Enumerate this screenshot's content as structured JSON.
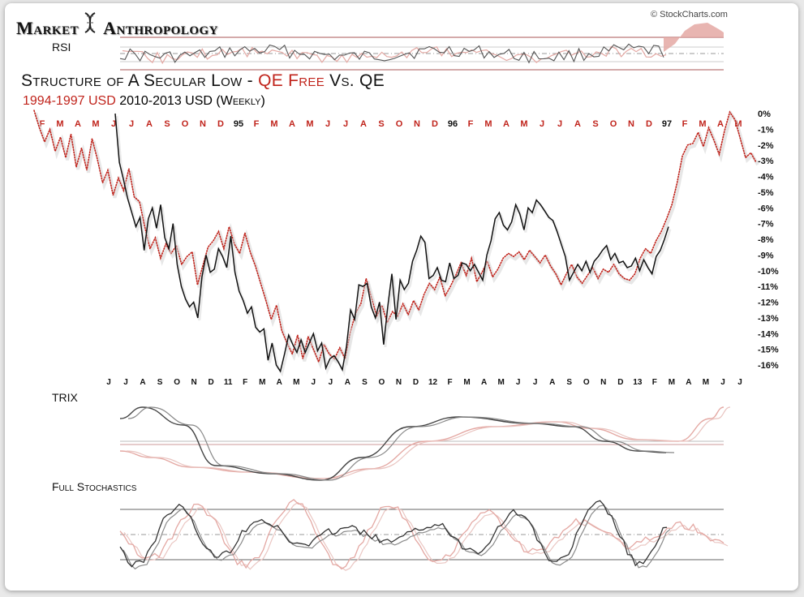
{
  "header": {
    "logo_left": "Market",
    "logo_right": "Anthropology",
    "copyright": "© StockCharts.com",
    "title_part1": "Structure of A Secular Low - ",
    "title_qe_free": "QE Free",
    "title_part2": " Vs. QE",
    "subtitle_red": "1994-1997 USD",
    "subtitle_black": " 2010-2013 USD (Weekly)"
  },
  "panels": {
    "rsi_label": "RSI",
    "trix_label": "TRIX",
    "stoch_label": "Full Stochastics"
  },
  "colors": {
    "red": "#c0231b",
    "pink": "#e4a8a3",
    "black": "#111111",
    "grey": "#777777"
  },
  "chart_data": {
    "type": "line",
    "title": "Structure of A Secular Low - QE Free Vs. QE",
    "subtitle": "1994-1997 USD 2010-2013 USD (Weekly)",
    "y_ticks": [
      "0%",
      "-1%",
      "-2%",
      "-3%",
      "-4%",
      "-5%",
      "-6%",
      "-7%",
      "-8%",
      "-9%",
      "-10%",
      "-11%",
      "-12%",
      "-13%",
      "-14%",
      "-15%",
      "-16%"
    ],
    "ylim": [
      -16,
      0
    ],
    "top_axis_labels": [
      "F",
      "M",
      "A",
      "M",
      "J",
      "J",
      "A",
      "S",
      "O",
      "N",
      "D",
      "95",
      "F",
      "M",
      "A",
      "M",
      "J",
      "J",
      "A",
      "S",
      "O",
      "N",
      "D",
      "96",
      "F",
      "M",
      "A",
      "M",
      "J",
      "J",
      "A",
      "S",
      "O",
      "N",
      "D",
      "97",
      "F",
      "M",
      "A",
      "M"
    ],
    "top_axis_dark": [
      "95",
      "96",
      "97"
    ],
    "bottom_axis_labels": [
      "J",
      "J",
      "A",
      "S",
      "O",
      "N",
      "D",
      "11",
      "F",
      "M",
      "A",
      "M",
      "J",
      "J",
      "A",
      "S",
      "O",
      "N",
      "D",
      "12",
      "F",
      "M",
      "A",
      "M",
      "J",
      "J",
      "A",
      "S",
      "O",
      "N",
      "D",
      "13",
      "F",
      "M",
      "A",
      "M",
      "J",
      "J"
    ],
    "series": [
      {
        "name": "1994-1997 USD",
        "style": "dotted",
        "x_start": 0,
        "x_end": 1,
        "values": [
          0.2,
          -0.9,
          -1.8,
          -1.0,
          -2.4,
          -1.5,
          -2.8,
          -1.3,
          -3.4,
          -2.2,
          -3.6,
          -1.6,
          -2.9,
          -4.4,
          -3.6,
          -5.2,
          -4.1,
          -4.9,
          -3.5,
          -5.3,
          -5.6,
          -7.2,
          -8.6,
          -7.9,
          -9.2,
          -8.3,
          -8.9,
          -8.4,
          -9.6,
          -9.1,
          -8.8,
          -10.9,
          -9.7,
          -8.5,
          -8.1,
          -7.5,
          -8.6,
          -7.2,
          -8.3,
          -8.9,
          -7.6,
          -8.8,
          -9.7,
          -10.8,
          -11.9,
          -13.1,
          -12.2,
          -13.8,
          -14.6,
          -15.3,
          -14.1,
          -15.6,
          -14.2,
          -15.0,
          -15.8,
          -14.7,
          -15.3,
          -15.6,
          -14.9,
          -15.6,
          -13.9,
          -12.7,
          -12.1,
          -10.5,
          -11.7,
          -12.9,
          -12.2,
          -13.3,
          -12.6,
          -12.9,
          -12.1,
          -12.8,
          -11.9,
          -12.5,
          -11.5,
          -10.8,
          -11.2,
          -10.4,
          -11.6,
          -11.0,
          -10.3,
          -9.5,
          -10.3,
          -9.2,
          -10.7,
          -10.1,
          -9.4,
          -10.4,
          -9.9,
          -9.2,
          -8.9,
          -9.1,
          -8.8,
          -9.3,
          -8.7,
          -9.1,
          -9.5,
          -9.0,
          -9.7,
          -10.2,
          -10.9,
          -10.2,
          -9.6,
          -10.4,
          -10.8,
          -10.3,
          -9.8,
          -10.5,
          -9.9,
          -10.1,
          -9.6,
          -10.2,
          -10.5,
          -10.6,
          -10.2,
          -9.2,
          -8.6,
          -8.9,
          -8.1,
          -7.5,
          -6.7,
          -5.8,
          -4.4,
          -2.7,
          -2.0,
          -1.9,
          -1.2,
          -2.1,
          -0.9,
          -1.7,
          -2.6,
          -1.1,
          0.1,
          -0.4,
          -1.6,
          -2.8,
          -2.5,
          -3.1
        ]
      },
      {
        "name": "2010-2013 USD",
        "style": "solid",
        "x_start": 0.1124,
        "x_end": 0.8787,
        "values": [
          0.0,
          -3.1,
          -4.2,
          -5.4,
          -6.3,
          -7.2,
          -6.6,
          -8.7,
          -6.7,
          -6.0,
          -7.3,
          -5.8,
          -7.9,
          -8.6,
          -7.0,
          -9.6,
          -11.0,
          -11.8,
          -12.3,
          -12.0,
          -13.0,
          -10.4,
          -9.0,
          -10.1,
          -9.9,
          -8.6,
          -9.1,
          -9.8,
          -7.8,
          -10.1,
          -11.3,
          -11.9,
          -12.7,
          -12.3,
          -13.6,
          -13.9,
          -13.7,
          -15.7,
          -14.6,
          -16.0,
          -16.4,
          -15.3,
          -14.1,
          -14.7,
          -15.2,
          -14.4,
          -15.2,
          -14.6,
          -14.0,
          -15.1,
          -14.6,
          -16.2,
          -15.6,
          -15.4,
          -15.8,
          -16.3,
          -14.8,
          -12.5,
          -13.1,
          -10.9,
          -11.0,
          -10.8,
          -12.3,
          -13.0,
          -12.0,
          -14.7,
          -12.3,
          -10.2,
          -13.1,
          -10.6,
          -11.2,
          -10.8,
          -9.4,
          -8.7,
          -7.8,
          -8.2,
          -10.5,
          -10.3,
          -9.8,
          -10.6,
          -10.7,
          -9.5,
          -10.5,
          -10.3,
          -9.5,
          -9.6,
          -10.0,
          -9.6,
          -10.1,
          -10.6,
          -9.0,
          -8.1,
          -6.7,
          -6.3,
          -7.1,
          -7.4,
          -6.9,
          -5.8,
          -6.4,
          -7.4,
          -6.0,
          -6.3,
          -5.5,
          -5.8,
          -6.2,
          -6.6,
          -6.8,
          -7.5,
          -8.3,
          -9.1,
          -10.6,
          -10.1,
          -9.6,
          -10.0,
          -9.4,
          -10.1,
          -9.4,
          -9.1,
          -8.7,
          -8.4,
          -9.3,
          -8.9,
          -9.5,
          -9.4,
          -9.8,
          -9.7,
          -9.2,
          -10.0,
          -9.3,
          -9.8,
          -10.2,
          -9.1,
          -8.7,
          -8.0,
          -7.2
        ]
      }
    ],
    "x_is_time": true,
    "grid": false,
    "legend": "subtitle"
  }
}
